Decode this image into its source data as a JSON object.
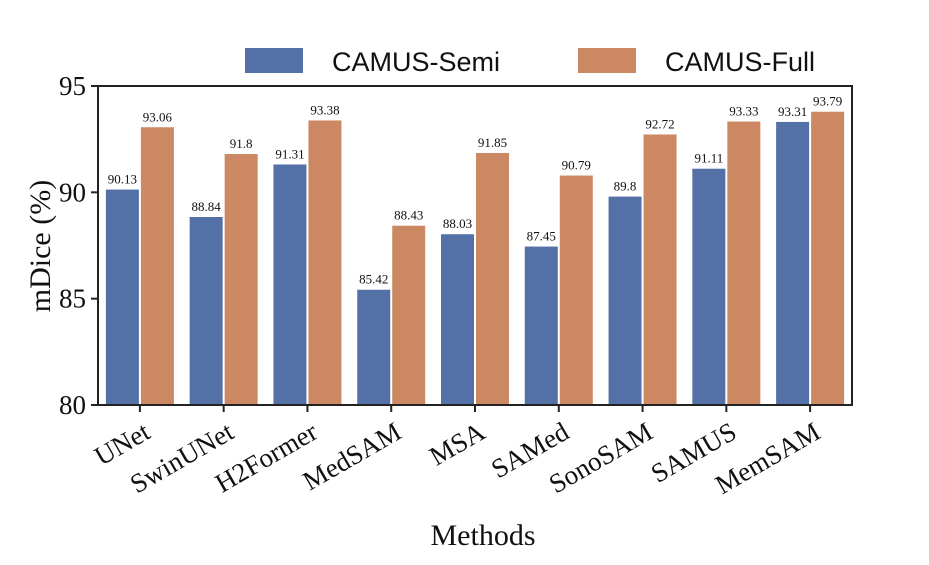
{
  "chart_data": {
    "type": "bar",
    "title": "",
    "xlabel": "Methods",
    "ylabel": "mDice (%)",
    "ylim": [
      80,
      95
    ],
    "yticks": [
      80,
      85,
      90,
      95
    ],
    "grid": false,
    "legend_position": "top",
    "categories": [
      "UNet",
      "SwinUNet",
      "H2Former",
      "MedSAM",
      "MSA",
      "SAMed",
      "SonoSAM",
      "SAMUS",
      "MemSAM"
    ],
    "series": [
      {
        "name": "CAMUS-Semi",
        "color": "#5471a7",
        "values": [
          90.13,
          88.84,
          91.31,
          85.42,
          88.03,
          87.45,
          89.8,
          91.11,
          93.31
        ],
        "labels": [
          "90.13",
          "88.84",
          "91.31",
          "85.42",
          "88.03",
          "87.45",
          "89.8",
          "91.11",
          "93.31"
        ]
      },
      {
        "name": "CAMUS-Full",
        "color": "#cc8863",
        "values": [
          93.06,
          91.8,
          93.38,
          88.43,
          91.85,
          90.79,
          92.72,
          93.33,
          93.79
        ],
        "labels": [
          "93.06",
          "91.8",
          "93.38",
          "88.43",
          "91.85",
          "90.79",
          "92.72",
          "93.33",
          "93.79"
        ]
      }
    ]
  }
}
